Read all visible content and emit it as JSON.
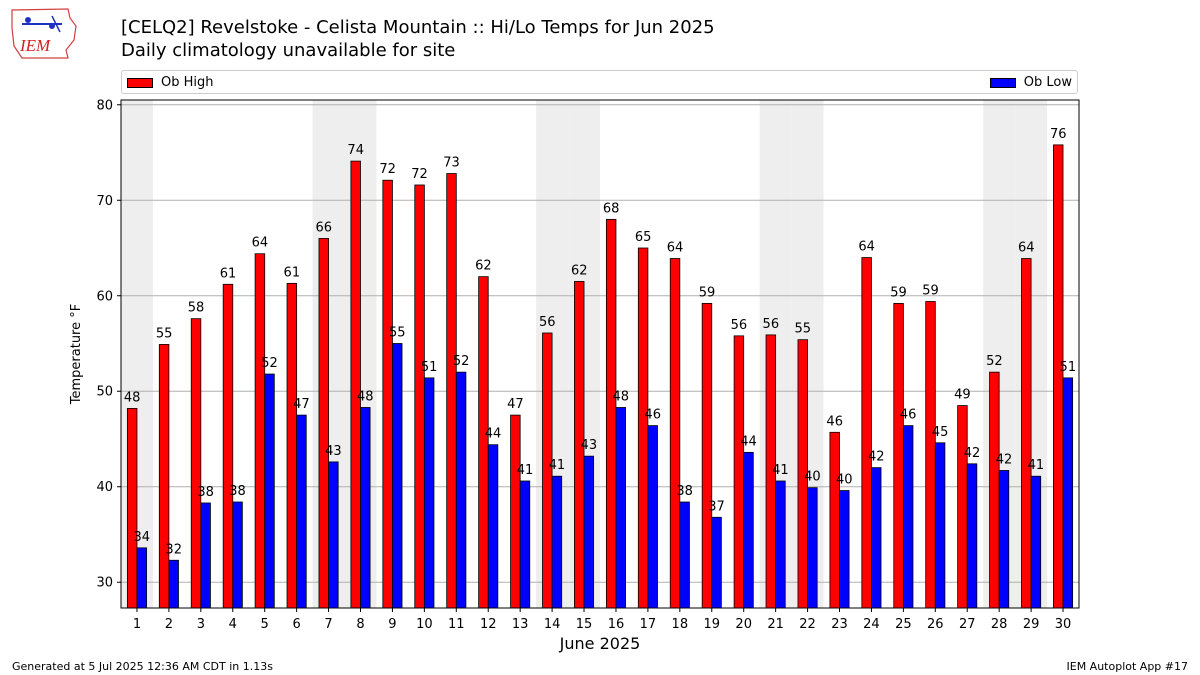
{
  "header": {
    "title": "[CELQ2] Revelstoke - Celista Mountain :: Hi/Lo Temps for Jun 2025",
    "subtitle": "Daily climatology unavailable for site",
    "logo_text": "IEM"
  },
  "footer": {
    "generated": "Generated at 5 Jul 2025 12:36 AM CDT in 1.13s",
    "app": "IEM Autoplot App #17"
  },
  "chart_data": {
    "type": "bar",
    "xlabel": "June 2025",
    "ylabel": "Temperature °F",
    "ylim": [
      27.3,
      80.5
    ],
    "yticks": [
      30,
      40,
      50,
      60,
      70,
      80
    ],
    "grid": true,
    "legend_placement": "top",
    "categories": [
      "1",
      "2",
      "3",
      "4",
      "5",
      "6",
      "7",
      "8",
      "9",
      "10",
      "11",
      "12",
      "13",
      "14",
      "15",
      "16",
      "17",
      "18",
      "19",
      "20",
      "21",
      "22",
      "23",
      "24",
      "25",
      "26",
      "27",
      "28",
      "29",
      "30"
    ],
    "weekend_shaded_days": [
      1,
      7,
      8,
      14,
      15,
      21,
      22,
      28,
      29
    ],
    "series": [
      {
        "name": "Ob High",
        "color": "#ff0000",
        "values": [
          48.2,
          54.9,
          57.6,
          61.2,
          64.4,
          61.3,
          66.0,
          74.1,
          72.1,
          71.6,
          72.8,
          62.0,
          47.5,
          56.1,
          61.5,
          68.0,
          65.0,
          63.9,
          59.2,
          55.8,
          55.9,
          55.4,
          45.7,
          64.0,
          59.2,
          59.4,
          48.5,
          52.0,
          63.9,
          75.8
        ],
        "labels": [
          "48",
          "55",
          "58",
          "61",
          "64",
          "61",
          "66",
          "74",
          "72",
          "72",
          "73",
          "62",
          "47",
          "56",
          "62",
          "68",
          "65",
          "64",
          "59",
          "56",
          "56",
          "55",
          "46",
          "64",
          "59",
          "59",
          "49",
          "52",
          "64",
          "76"
        ]
      },
      {
        "name": "Ob Low",
        "color": "#0000ff",
        "values": [
          33.6,
          32.3,
          38.3,
          38.4,
          51.8,
          47.5,
          42.6,
          48.3,
          55.0,
          51.4,
          52.0,
          44.4,
          40.6,
          41.1,
          43.2,
          48.3,
          46.4,
          38.4,
          36.8,
          43.6,
          40.6,
          39.9,
          39.6,
          42.0,
          46.4,
          44.6,
          42.4,
          41.7,
          41.1,
          51.4
        ],
        "labels": [
          "34",
          "32",
          "38",
          "38",
          "52",
          "47",
          "43",
          "48",
          "55",
          "51",
          "52",
          "44",
          "41",
          "41",
          "43",
          "48",
          "46",
          "38",
          "37",
          "44",
          "41",
          "40",
          "40",
          "42",
          "46",
          "45",
          "42",
          "42",
          "41",
          "51"
        ]
      }
    ]
  }
}
